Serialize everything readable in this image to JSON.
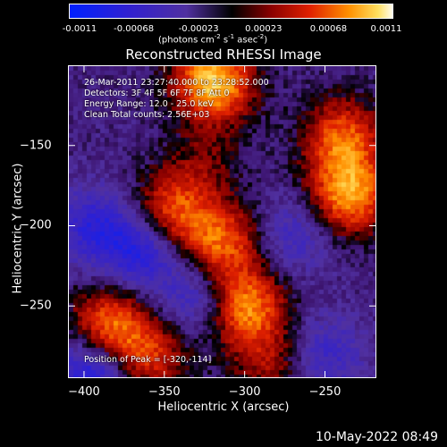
{
  "chart_data": {
    "type": "heatmap",
    "title": "Reconstructed RHESSI Image",
    "xlabel": "Heliocentric X (arcsec)",
    "ylabel": "Heliocentric Y (arcsec)",
    "xlim": [
      -410,
      -218
    ],
    "ylim": [
      -295,
      -100
    ],
    "x_ticks": [
      -400,
      -350,
      -300,
      -250
    ],
    "y_ticks": [
      -150,
      -200,
      -250
    ],
    "colorbar": {
      "ticks": [
        "-0.0011",
        "-0.00068",
        "-0.00023",
        "0.00023",
        "0.00068",
        "0.0011"
      ],
      "range": [
        -0.0011,
        0.0011
      ],
      "label_prefix": "(photons cm",
      "label_exp1": "-2",
      "label_mid": " s",
      "label_exp2": "-1",
      "label_mid2": " asec",
      "label_exp3": "-2",
      "label_suffix": ")"
    },
    "annotations": [
      "26-Mar-2011 23:27:40.000 to 23:28:52.000",
      "Detectors: 3F 4F 5F 6F 7F 8F Att 0",
      "Energy Range: 12.0 - 25.0 keV",
      "Clean     Total counts: 2.56E+03"
    ],
    "peak_label": "Position of Peak = [-320,-114]",
    "sources": [
      {
        "x": -320,
        "y": -110,
        "intensity": 0.0011
      },
      {
        "x": -235,
        "y": -180,
        "intensity": 0.00095
      },
      {
        "x": -240,
        "y": -145,
        "intensity": 0.00075
      },
      {
        "x": -300,
        "y": -250,
        "intensity": 0.0009
      },
      {
        "x": -315,
        "y": -210,
        "intensity": 0.00075
      },
      {
        "x": -345,
        "y": -190,
        "intensity": 0.0007
      },
      {
        "x": -385,
        "y": -262,
        "intensity": 0.0008
      },
      {
        "x": -360,
        "y": -280,
        "intensity": 0.0006
      },
      {
        "x": -285,
        "y": -285,
        "intensity": 0.0004
      },
      {
        "x": -325,
        "y": -160,
        "intensity": 0.00025
      },
      {
        "x": -365,
        "y": -215,
        "intensity": -0.0006
      },
      {
        "x": -395,
        "y": -200,
        "intensity": -0.0005
      },
      {
        "x": -330,
        "y": -245,
        "intensity": -0.00045
      },
      {
        "x": -395,
        "y": -290,
        "intensity": -0.0007
      },
      {
        "x": -270,
        "y": -205,
        "intensity": -0.00035
      },
      {
        "x": -250,
        "y": -280,
        "intensity": -0.0004
      }
    ]
  },
  "footer": {
    "timestamp": "10-May-2022 08:49"
  }
}
